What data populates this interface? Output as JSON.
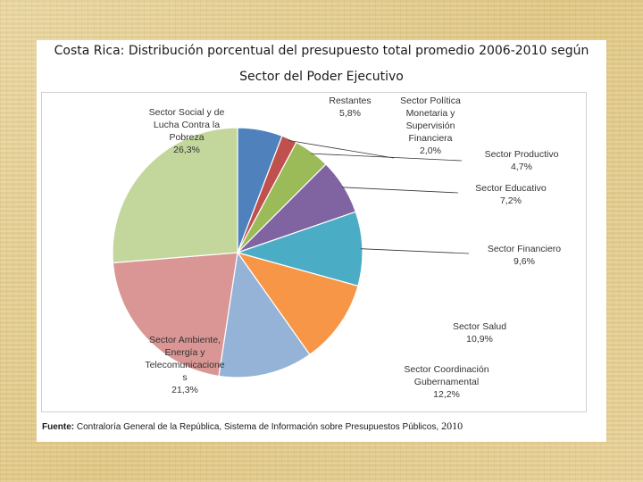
{
  "chart_data": {
    "type": "pie",
    "title": "Costa Rica: Distribución porcentual del presupuesto total promedio 2006-2010 según",
    "subtitle": "Sector del Poder Ejecutivo",
    "slices": [
      {
        "name": "Restantes",
        "label_lines": [
          "Restantes"
        ],
        "value": 5.8,
        "value_label": "5,8%",
        "color": "#4f81bd"
      },
      {
        "name": "Sector Política Monetaria y Supervisión Financiera",
        "label_lines": [
          "Sector Política",
          "Monetaria y",
          "Supervisión",
          "Financiera"
        ],
        "value": 2.0,
        "value_label": "2,0%",
        "color": "#c0504d"
      },
      {
        "name": "Sector Productivo",
        "label_lines": [
          "Sector Productivo"
        ],
        "value": 4.7,
        "value_label": "4,7%",
        "color": "#9bbb59"
      },
      {
        "name": "Sector Educativo",
        "label_lines": [
          "Sector Educativo"
        ],
        "value": 7.2,
        "value_label": "7,2%",
        "color": "#8064a2"
      },
      {
        "name": "Sector Financiero",
        "label_lines": [
          "Sector Financiero"
        ],
        "value": 9.6,
        "value_label": "9,6%",
        "color": "#4bacc6"
      },
      {
        "name": "Sector Salud",
        "label_lines": [
          "Sector Salud"
        ],
        "value": 10.9,
        "value_label": "10,9%",
        "color": "#f79646"
      },
      {
        "name": "Sector Coordinación Gubernamental",
        "label_lines": [
          "Sector Coordinación",
          "Gubernamental"
        ],
        "value": 12.2,
        "value_label": "12,2%",
        "color": "#95b3d7"
      },
      {
        "name": "Sector Ambiente, Energía y Telecomunicaciones",
        "label_lines": [
          "Sector Ambiente,",
          "Energía y",
          "Telecomunicacione",
          "s"
        ],
        "value": 21.3,
        "value_label": "21,3%",
        "color": "#d99694"
      },
      {
        "name": "Sector Social y de Lucha Contra la Pobreza",
        "label_lines": [
          "Sector Social y de",
          "Lucha Contra la",
          "Pobreza"
        ],
        "value": 26.3,
        "value_label": "26,3%",
        "color": "#c3d69b"
      }
    ],
    "start": "12 o'clock",
    "direction": "clockwise"
  },
  "source": {
    "prefix": "Fuente:",
    "text": " Contraloría General de la República, Sistema de Información sobre Presupuestos Públicos,",
    "year": " 2010"
  }
}
